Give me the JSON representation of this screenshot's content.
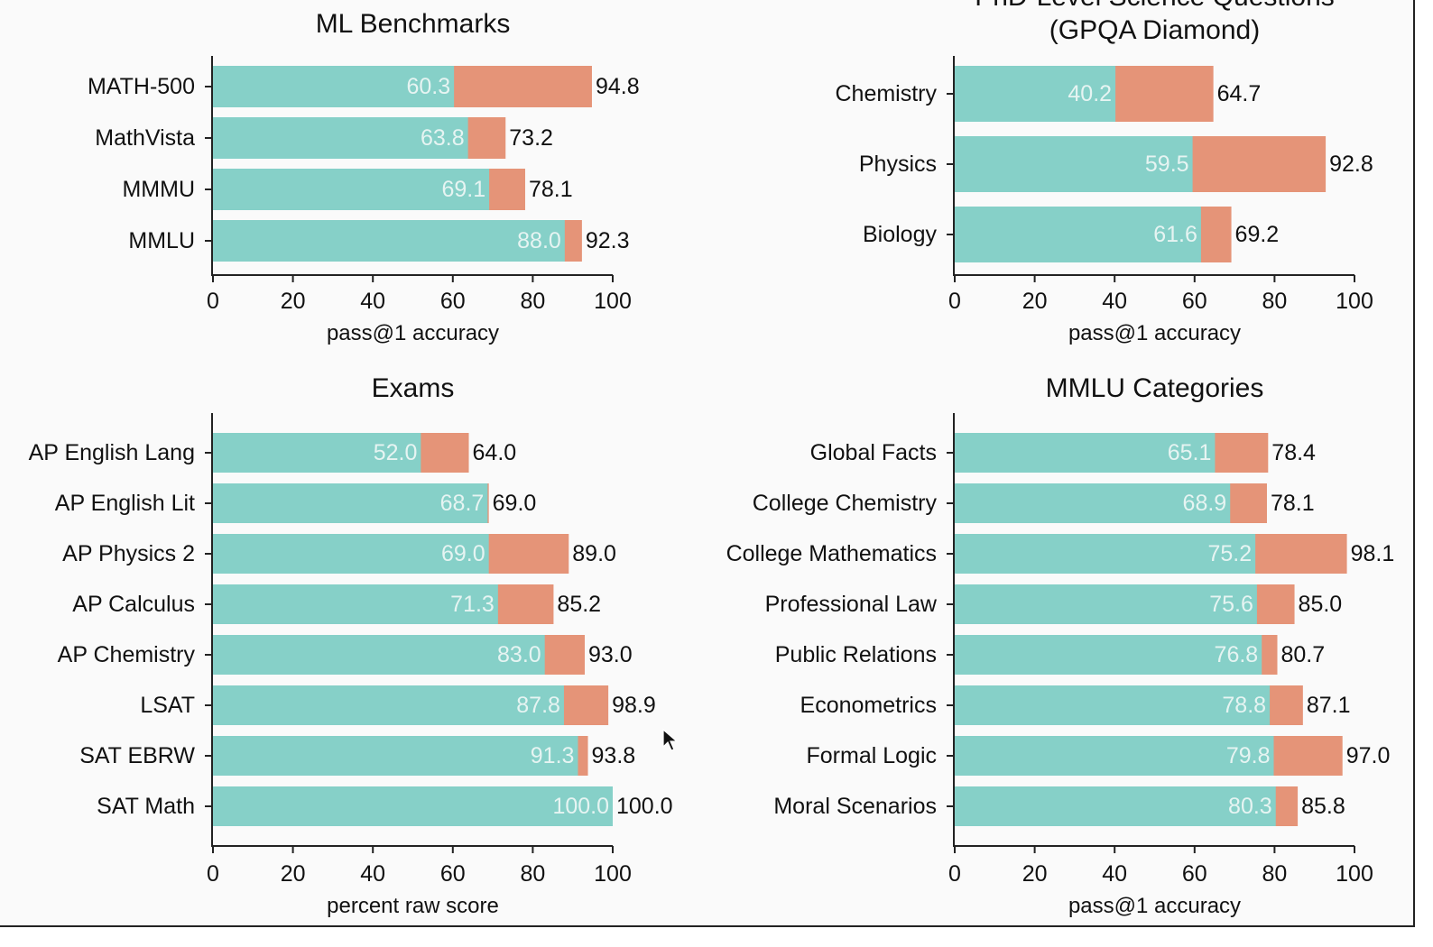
{
  "colors": {
    "base": "#86d0c8",
    "gain": "#e59478",
    "axis": "#222222"
  },
  "chart_data": [
    {
      "type": "bar",
      "title": "ML Benchmarks",
      "xlabel": "pass@1 accuracy",
      "xlim": [
        0,
        100
      ],
      "xticks": [
        "0",
        "20",
        "40",
        "60",
        "80",
        "100"
      ],
      "categories": [
        "MATH-500",
        "MathVista",
        "MMMU",
        "MMLU"
      ],
      "series": [
        {
          "values": [
            60.3,
            63.8,
            69.1,
            88.0
          ]
        },
        {
          "values": [
            94.8,
            73.2,
            78.1,
            92.3
          ]
        }
      ],
      "base_labels": [
        "60.3",
        "63.8",
        "69.1",
        "88.0"
      ],
      "total_labels": [
        "94.8",
        "73.2",
        "78.1",
        "92.3"
      ]
    },
    {
      "type": "bar",
      "title": "PhD-Level Science Questions\n(GPQA Diamond)",
      "xlabel": "pass@1 accuracy",
      "xlim": [
        0,
        100
      ],
      "xticks": [
        "0",
        "20",
        "40",
        "60",
        "80",
        "100"
      ],
      "categories": [
        "Chemistry",
        "Physics",
        "Biology"
      ],
      "series": [
        {
          "values": [
            40.2,
            59.5,
            61.6
          ]
        },
        {
          "values": [
            64.7,
            92.8,
            69.2
          ]
        }
      ],
      "base_labels": [
        "40.2",
        "59.5",
        "61.6"
      ],
      "total_labels": [
        "64.7",
        "92.8",
        "69.2"
      ]
    },
    {
      "type": "bar",
      "title": "Exams",
      "xlabel": "percent raw score",
      "xlim": [
        0,
        100
      ],
      "xticks": [
        "0",
        "20",
        "40",
        "60",
        "80",
        "100"
      ],
      "categories": [
        "AP English Lang",
        "AP English Lit",
        "AP Physics 2",
        "AP Calculus",
        "AP Chemistry",
        "LSAT",
        "SAT EBRW",
        "SAT Math"
      ],
      "series": [
        {
          "values": [
            52.0,
            68.7,
            69.0,
            71.3,
            83.0,
            87.8,
            91.3,
            100.0
          ]
        },
        {
          "values": [
            64.0,
            69.0,
            89.0,
            85.2,
            93.0,
            98.9,
            93.8,
            100.0
          ]
        }
      ],
      "base_labels": [
        "52.0",
        "68.7",
        "69.0",
        "71.3",
        "83.0",
        "87.8",
        "91.3",
        "100.0"
      ],
      "total_labels": [
        "64.0",
        "69.0",
        "89.0",
        "85.2",
        "93.0",
        "98.9",
        "93.8",
        "100.0"
      ]
    },
    {
      "type": "bar",
      "title": "MMLU Categories",
      "xlabel": "pass@1 accuracy",
      "xlim": [
        0,
        100
      ],
      "xticks": [
        "0",
        "20",
        "40",
        "60",
        "80",
        "100"
      ],
      "categories": [
        "Global Facts",
        "College Chemistry",
        "College Mathematics",
        "Professional Law",
        "Public Relations",
        "Econometrics",
        "Formal Logic",
        "Moral Scenarios"
      ],
      "series": [
        {
          "values": [
            65.1,
            68.9,
            75.2,
            75.6,
            76.8,
            78.8,
            79.8,
            80.3
          ]
        },
        {
          "values": [
            78.4,
            78.1,
            98.1,
            85.0,
            80.7,
            87.1,
            97.0,
            85.8
          ]
        }
      ],
      "base_labels": [
        "65.1",
        "68.9",
        "75.2",
        "75.6",
        "76.8",
        "78.8",
        "79.8",
        "80.3"
      ],
      "total_labels": [
        "78.4",
        "78.1",
        "98.1",
        "85.0",
        "80.7",
        "87.1",
        "97.0",
        "85.8"
      ]
    }
  ]
}
